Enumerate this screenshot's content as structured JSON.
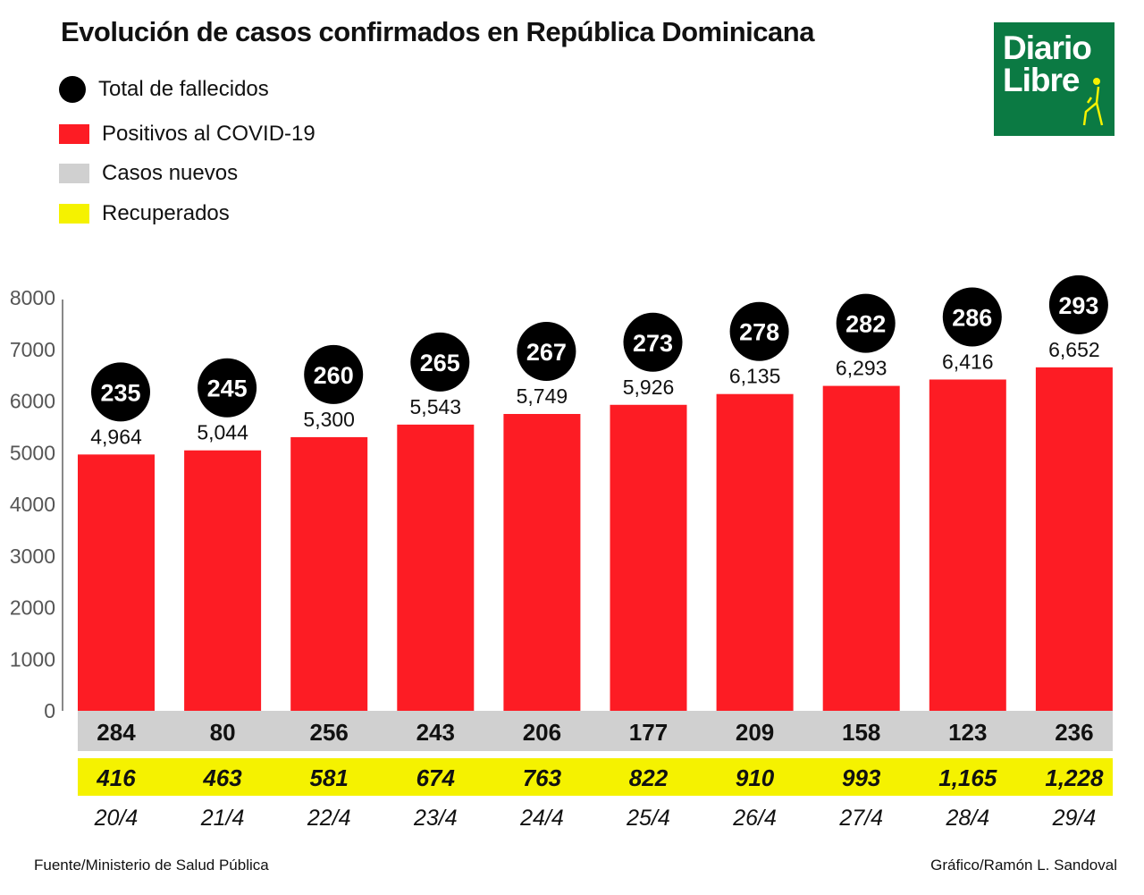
{
  "title": "Evolución de casos confirmados en República Dominicana",
  "logo": {
    "line1": "Diario",
    "line2": "Libre"
  },
  "legend": [
    {
      "label": "Total de fallecidos",
      "color": "#000000"
    },
    {
      "label": "Positivos al COVID-19",
      "color": "#fd1c24"
    },
    {
      "label": "Casos nuevos",
      "color": "#d0d0d0"
    },
    {
      "label": "Recuperados",
      "color": "#f5f200"
    }
  ],
  "footer": {
    "source": "Fuente/Ministerio de Salud Pública",
    "credit": "Gráfico/Ramón L. Sandoval"
  },
  "chart_data": {
    "type": "bar",
    "title": "Evolución de casos confirmados en República Dominicana",
    "categories": [
      "20/4",
      "21/4",
      "22/4",
      "23/4",
      "24/4",
      "25/4",
      "26/4",
      "27/4",
      "28/4",
      "29/4"
    ],
    "ylim": [
      0,
      8000
    ],
    "yticks": [
      "0",
      "1000",
      "2000",
      "3000",
      "4000",
      "5000",
      "6000",
      "7000",
      "8000"
    ],
    "series": [
      {
        "name": "Positivos al COVID-19",
        "values": [
          4964,
          5044,
          5300,
          5543,
          5749,
          5926,
          6135,
          6293,
          6416,
          6652
        ],
        "labels": [
          "4,964",
          "5,044",
          "5,300",
          "5,543",
          "5,749",
          "5,926",
          "6,135",
          "6,293",
          "6,416",
          "6,652"
        ]
      },
      {
        "name": "Total de fallecidos",
        "values": [
          235,
          245,
          260,
          265,
          267,
          273,
          278,
          282,
          286,
          293
        ]
      },
      {
        "name": "Casos nuevos",
        "values": [
          284,
          80,
          256,
          243,
          206,
          177,
          209,
          158,
          123,
          236
        ]
      },
      {
        "name": "Recuperados",
        "values": [
          416,
          463,
          581,
          674,
          763,
          822,
          910,
          993,
          1165,
          1228
        ],
        "labels": [
          "416",
          "463",
          "581",
          "674",
          "763",
          "822",
          "910",
          "993",
          "1,165",
          "1,228"
        ]
      }
    ],
    "grid": false,
    "legend_position": "top-left"
  }
}
